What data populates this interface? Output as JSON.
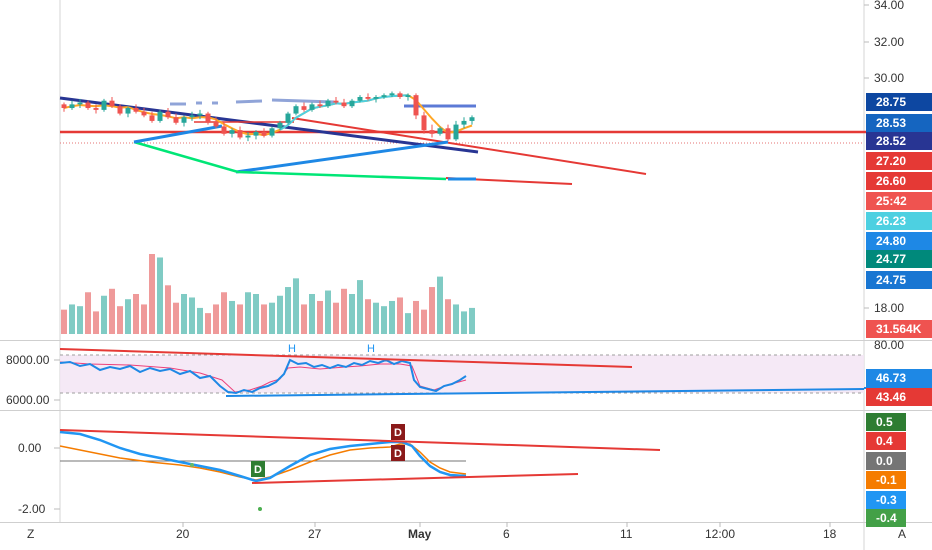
{
  "chart_data": {
    "type": "candlestick",
    "price_axis": {
      "ticks": [
        "34.00",
        "32.00",
        "30.00",
        "18.00"
      ],
      "tags": [
        {
          "label": "28.75",
          "color": "#0d47a1"
        },
        {
          "label": "28.53",
          "color": "#1565c0"
        },
        {
          "label": "28.52",
          "color": "#283593"
        },
        {
          "label": "27.20",
          "color": "#e53935"
        },
        {
          "label": "26.60",
          "color": "#e53935"
        },
        {
          "label": "25:42",
          "color": "#ef5350"
        },
        {
          "label": "26.23",
          "color": "#4dd0e1"
        },
        {
          "label": "24.80",
          "color": "#1e88e5"
        },
        {
          "label": "24.77",
          "color": "#00897b"
        },
        {
          "label": "24.75",
          "color": "#1976d2"
        },
        {
          "label": "31.564K",
          "color": "#ef5350"
        }
      ]
    },
    "rsi_axis": {
      "ticks": [
        "80.00"
      ],
      "left_ticks": [
        "8000.00",
        "6000.00"
      ],
      "tags": [
        {
          "label": "46.73",
          "color": "#1e88e5"
        },
        {
          "label": "43.46",
          "color": "#e53935"
        }
      ],
      "markers": [
        "H",
        "H"
      ]
    },
    "osc_axis": {
      "left_ticks": [
        "0.00",
        "-2.00"
      ],
      "tags": [
        {
          "label": "0.5",
          "color": "#2e7d32"
        },
        {
          "label": "0.4",
          "color": "#e53935"
        },
        {
          "label": "0.0",
          "color": "#757575"
        },
        {
          "label": "-0.1",
          "color": "#f57c00"
        },
        {
          "label": "-0.3",
          "color": "#2196f3"
        },
        {
          "label": "-0.4",
          "color": "#43a047"
        }
      ],
      "markers": [
        "D",
        "D",
        "D"
      ]
    },
    "time_axis": [
      "20",
      "27",
      "May",
      "6",
      "11",
      "12:00",
      "18"
    ],
    "corner_left": "Z",
    "corner_right": "A",
    "colors": {
      "up": "#26a69a",
      "down": "#ef5350",
      "vol_up": "#80cbc4",
      "vol_down": "#ef9a9a",
      "resistance": "#e53935",
      "trend_dark": "#283593",
      "trend_blue": "#1e88e5",
      "support_green": "#00e676"
    },
    "candles": [
      [
        28.6,
        28.7,
        28.2,
        28.4
      ],
      [
        28.4,
        28.8,
        28.3,
        28.6
      ],
      [
        28.6,
        28.9,
        28.4,
        28.7
      ],
      [
        28.7,
        28.8,
        28.3,
        28.4
      ],
      [
        28.4,
        28.6,
        28.1,
        28.3
      ],
      [
        28.3,
        28.9,
        28.2,
        28.8
      ],
      [
        28.8,
        29.0,
        28.4,
        28.5
      ],
      [
        28.5,
        28.6,
        28.0,
        28.1
      ],
      [
        28.1,
        28.5,
        27.9,
        28.4
      ],
      [
        28.4,
        28.6,
        28.1,
        28.2
      ],
      [
        28.2,
        28.4,
        27.9,
        28.0
      ],
      [
        28.0,
        28.2,
        27.6,
        27.7
      ],
      [
        27.7,
        28.3,
        27.6,
        28.2
      ],
      [
        28.2,
        28.4,
        27.8,
        27.9
      ],
      [
        27.9,
        28.1,
        27.5,
        27.6
      ],
      [
        27.6,
        28.0,
        27.4,
        27.9
      ],
      [
        27.9,
        28.2,
        27.7,
        28.0
      ],
      [
        28.0,
        28.3,
        27.8,
        28.1
      ],
      [
        28.1,
        28.2,
        27.5,
        27.6
      ],
      [
        27.6,
        27.9,
        27.3,
        27.4
      ],
      [
        27.4,
        27.6,
        26.9,
        27.0
      ],
      [
        27.0,
        27.3,
        26.8,
        27.2
      ],
      [
        27.2,
        27.4,
        26.7,
        26.8
      ],
      [
        26.8,
        27.1,
        26.6,
        26.9
      ],
      [
        26.9,
        27.2,
        26.7,
        27.1
      ],
      [
        27.1,
        27.3,
        26.8,
        26.9
      ],
      [
        26.9,
        27.4,
        26.8,
        27.3
      ],
      [
        27.3,
        27.7,
        27.2,
        27.6
      ],
      [
        27.6,
        28.2,
        27.5,
        28.1
      ],
      [
        28.1,
        28.6,
        28.0,
        28.5
      ],
      [
        28.5,
        28.7,
        28.2,
        28.3
      ],
      [
        28.3,
        28.7,
        28.2,
        28.6
      ],
      [
        28.6,
        28.8,
        28.4,
        28.5
      ],
      [
        28.5,
        28.9,
        28.4,
        28.8
      ],
      [
        28.8,
        29.0,
        28.6,
        28.7
      ],
      [
        28.7,
        28.9,
        28.4,
        28.5
      ],
      [
        28.5,
        28.9,
        28.4,
        28.8
      ],
      [
        28.8,
        29.1,
        28.7,
        29.0
      ],
      [
        29.0,
        29.2,
        28.8,
        28.9
      ],
      [
        28.9,
        29.1,
        28.7,
        29.0
      ],
      [
        29.0,
        29.2,
        28.9,
        29.1
      ],
      [
        29.1,
        29.3,
        29.0,
        29.2
      ],
      [
        29.2,
        29.3,
        28.9,
        29.0
      ],
      [
        29.0,
        29.2,
        28.8,
        29.1
      ],
      [
        29.1,
        29.2,
        27.8,
        28.0
      ],
      [
        28.0,
        28.2,
        27.0,
        27.2
      ],
      [
        27.2,
        27.5,
        26.8,
        27.0
      ],
      [
        27.0,
        27.4,
        26.9,
        27.3
      ],
      [
        27.3,
        27.5,
        26.6,
        26.7
      ],
      [
        26.7,
        27.7,
        26.6,
        27.5
      ],
      [
        27.5,
        27.9,
        27.3,
        27.7
      ],
      [
        27.7,
        28.0,
        27.5,
        27.9
      ]
    ],
    "volumes": [
      14,
      17,
      16,
      24,
      13,
      22,
      26,
      16,
      20,
      23,
      17,
      46,
      44,
      28,
      18,
      23,
      21,
      15,
      12,
      17,
      24,
      19,
      17,
      24,
      23,
      17,
      18,
      22,
      27,
      32,
      17,
      23,
      19,
      25,
      18,
      26,
      23,
      31,
      20,
      18,
      16,
      19,
      21,
      12,
      19,
      14,
      27,
      33,
      20,
      17,
      13,
      15
    ]
  }
}
